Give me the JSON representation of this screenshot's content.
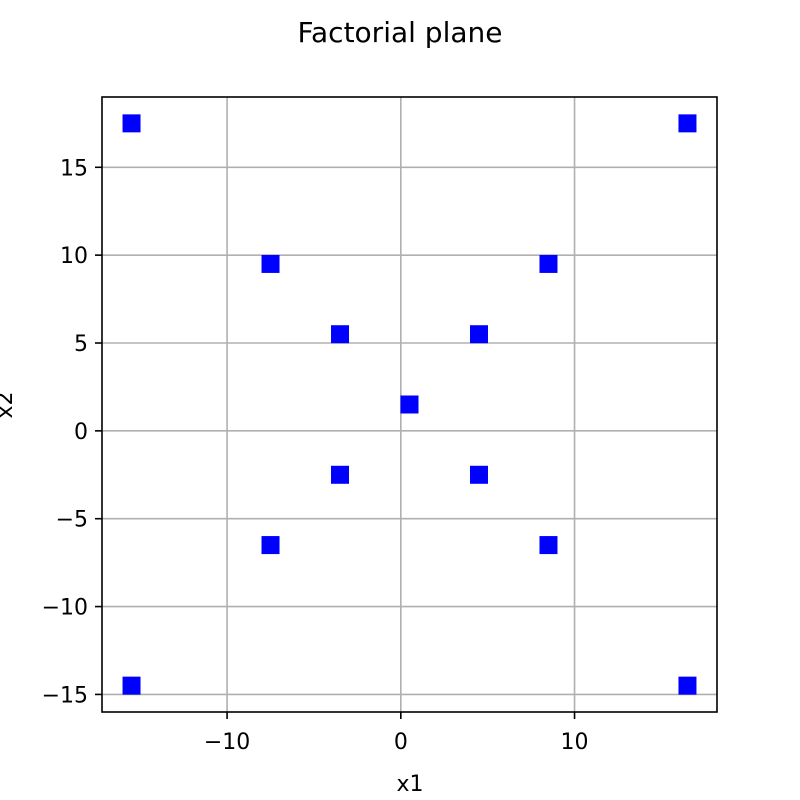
{
  "chart_data": {
    "type": "scatter",
    "title": "Factorial plane",
    "xlabel": "x1",
    "ylabel": "x2",
    "xlim": [
      -17.2,
      18.2
    ],
    "ylim": [
      -16.0,
      19.0
    ],
    "xticks": [
      -10,
      0,
      10
    ],
    "yticks": [
      -15,
      -10,
      -5,
      0,
      5,
      10,
      15
    ],
    "xtick_labels": [
      "−10",
      "0",
      "10"
    ],
    "ytick_labels": [
      "−15",
      "−10",
      "−5",
      "0",
      "5",
      "10",
      "15"
    ],
    "grid": true,
    "marker": "square",
    "marker_color": "#0000ff",
    "x": [
      0.5,
      -3.5,
      4.5,
      -3.5,
      4.5,
      -7.5,
      8.5,
      -7.5,
      8.5,
      -15.5,
      16.5,
      -15.5,
      16.5
    ],
    "y": [
      1.5,
      -2.5,
      -2.5,
      5.5,
      5.5,
      -6.5,
      -6.5,
      9.5,
      9.5,
      -14.5,
      -14.5,
      17.5,
      17.5
    ]
  }
}
